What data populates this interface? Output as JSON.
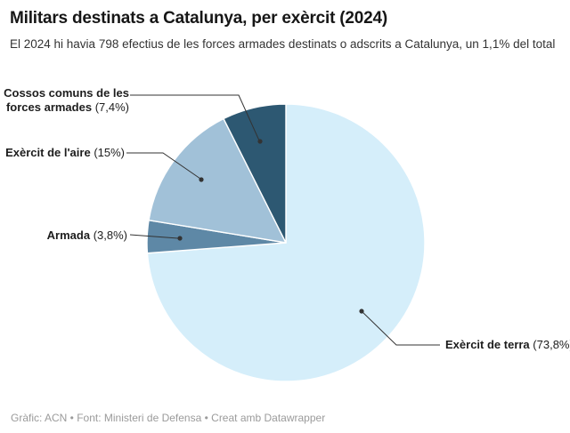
{
  "header": {
    "title": "Militars destinats a Catalunya, per exèrcit (2024)",
    "subtitle": "El 2024 hi havia 798 efectius de les forces armades destinats o adscrits a Catalunya, un 1,1% del total"
  },
  "chart_data": {
    "type": "pie",
    "title": "Militars destinats a Catalunya, per exèrcit (2024)",
    "start_angle_deg": 0,
    "direction": "clockwise",
    "legend_position": "callout-labels",
    "slices": [
      {
        "key": "exercit-de-terra",
        "label": "Exèrcit de terra",
        "value_pct": 73.8,
        "pct_label": "(73,8%)",
        "color": "#d5eefa"
      },
      {
        "key": "armada",
        "label": "Armada",
        "value_pct": 3.8,
        "pct_label": "(3,8%)",
        "color": "#5e88a6"
      },
      {
        "key": "exercit-de-laire",
        "label": "Exèrcit de l'aire",
        "value_pct": 15,
        "pct_label": "(15%)",
        "color": "#a1c1d8"
      },
      {
        "key": "cossos-comuns",
        "label": "Cossos comuns de les forces armades",
        "value_pct": 7.4,
        "pct_label": "(7,4%)",
        "color": "#2d5872"
      }
    ],
    "colors": {
      "leader_line": "#333333",
      "slice_border": "#ffffff"
    }
  },
  "footer": {
    "credit": "Gràfic: ACN • Font: Ministeri de Defensa • Creat amb Datawrapper"
  }
}
